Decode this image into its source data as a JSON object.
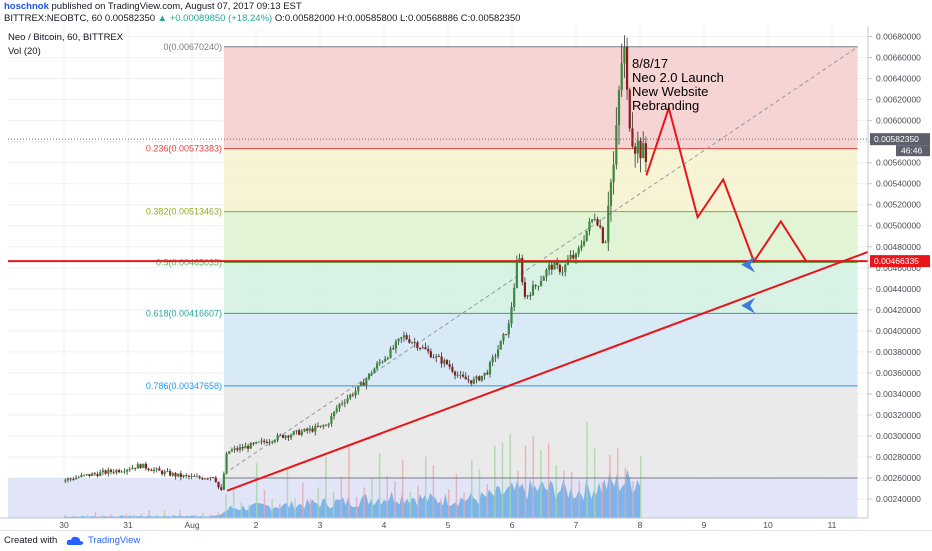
{
  "header": {
    "author": "hoschnok",
    "published": "published on TradingView.com, August 07, 2017 09:13 EST",
    "ticker_line": "BITTREX:NEOBTC, 60  0.00582350",
    "change": "▲ +0.00089850 (+18.24%)",
    "ohlc": "O:0.00582000 H:0.00585800 L:0.00568886 C:0.00582350"
  },
  "legend": {
    "symbol": "Neo / Bitcoin, 60, BITTREX",
    "volume": "Vol (20)"
  },
  "annotation": {
    "lines": [
      "8/8/17",
      "Neo 2.0 Launch",
      "New Website",
      "Rebranding"
    ]
  },
  "footer": {
    "created_with": "Created with",
    "brand": "TradingView"
  },
  "chart_data": {
    "type": "candlestick",
    "symbol": "NEOBTC",
    "timeframe": "60",
    "exchange": "BITTREX",
    "x_tick_labels": [
      "30",
      "31",
      "Aug",
      "2",
      "3",
      "4",
      "5",
      "6",
      "7",
      "8",
      "9",
      "10",
      "11"
    ],
    "x_tick_day_index": [
      0,
      1,
      2,
      3,
      4,
      5,
      6,
      7,
      8,
      9,
      10,
      11,
      12
    ],
    "ylim": [
      0.00222,
      0.0069
    ],
    "y_ticks": [
      "0.00240000",
      "0.00260000",
      "0.00280000",
      "0.00300000",
      "0.00320000",
      "0.00340000",
      "0.00360000",
      "0.00380000",
      "0.00400000",
      "0.00420000",
      "0.00440000",
      "0.00460000",
      "0.00480000",
      "0.00500000",
      "0.00520000",
      "0.00540000",
      "0.00560000",
      "0.00580000",
      "0.00600000",
      "0.00620000",
      "0.00640000",
      "0.00660000",
      "0.00680000"
    ],
    "last_price": {
      "value": 0.0058235,
      "label": "0.00582350",
      "countdown": "46:46"
    },
    "horizontal_level": {
      "value": 0.00466335,
      "label": "0.00466335",
      "color": "#e8151b"
    },
    "fibonacci": [
      {
        "level": "0",
        "value": 0.0067024,
        "label": "0(0.00670240)",
        "color": "#787b86"
      },
      {
        "level": "0.236",
        "value": 0.00573383,
        "label": "0.236(0.00573383)",
        "color": "#e4443f"
      },
      {
        "level": "0.382",
        "value": 0.00513463,
        "label": "0.382(0.00513463)",
        "color": "#8fae1b"
      },
      {
        "level": "0.5",
        "value": 0.00465035,
        "label": "0.5(0.00465035)",
        "color": "#4caf50"
      },
      {
        "level": "0.618",
        "value": 0.00416607,
        "label": "0.618(0.00416607)",
        "color": "#26a69a"
      },
      {
        "level": "0.786",
        "value": 0.00347658,
        "label": "0.786(0.00347658)",
        "color": "#2196f3"
      },
      {
        "level": "1",
        "value": 0.0026,
        "label": "",
        "color": "#787b86"
      }
    ],
    "fib_zone_colors": [
      "#f6cccc",
      "#f4f2cd",
      "#dcf3cf",
      "#d1f0e0",
      "#d2e6f6",
      "#e6e6e6"
    ],
    "fib_start_day": 2.5,
    "fib_end_day": 12.4,
    "price_path": [
      [
        0.0,
        0.00258
      ],
      [
        0.3,
        0.00262
      ],
      [
        0.6,
        0.00265
      ],
      [
        0.9,
        0.00268
      ],
      [
        1.2,
        0.00272
      ],
      [
        1.5,
        0.00266
      ],
      [
        1.8,
        0.00262
      ],
      [
        2.1,
        0.0026
      ],
      [
        2.35,
        0.00262
      ],
      [
        2.45,
        0.00245
      ],
      [
        2.55,
        0.00285
      ],
      [
        3.0,
        0.00292
      ],
      [
        3.4,
        0.003
      ],
      [
        3.8,
        0.00305
      ],
      [
        4.1,
        0.0031
      ],
      [
        4.3,
        0.0033
      ],
      [
        4.6,
        0.00345
      ],
      [
        4.9,
        0.00368
      ],
      [
        5.1,
        0.0038
      ],
      [
        5.3,
        0.00395
      ],
      [
        5.5,
        0.00388
      ],
      [
        5.8,
        0.00375
      ],
      [
        6.0,
        0.00368
      ],
      [
        6.2,
        0.00355
      ],
      [
        6.4,
        0.00352
      ],
      [
        6.6,
        0.0036
      ],
      [
        6.8,
        0.00385
      ],
      [
        6.95,
        0.00405
      ],
      [
        7.05,
        0.0045
      ],
      [
        7.1,
        0.00475
      ],
      [
        7.2,
        0.00432
      ],
      [
        7.4,
        0.00445
      ],
      [
        7.6,
        0.00462
      ],
      [
        7.8,
        0.00458
      ],
      [
        7.9,
        0.0047
      ],
      [
        8.0,
        0.0047
      ],
      [
        8.1,
        0.00485
      ],
      [
        8.2,
        0.005
      ],
      [
        8.3,
        0.0051
      ],
      [
        8.4,
        0.00495
      ],
      [
        8.45,
        0.00475
      ],
      [
        8.5,
        0.00525
      ],
      [
        8.6,
        0.0056
      ],
      [
        8.7,
        0.0065
      ],
      [
        8.75,
        0.0067
      ],
      [
        8.8,
        0.0062
      ],
      [
        8.9,
        0.0058
      ],
      [
        9.0,
        0.00575
      ],
      [
        9.1,
        0.0056
      ]
    ],
    "volume_path": [
      [
        0.0,
        0.1
      ],
      [
        2.4,
        0.15
      ],
      [
        2.6,
        0.7
      ],
      [
        3.5,
        0.9
      ],
      [
        4.5,
        1.2
      ],
      [
        5.2,
        1.6
      ],
      [
        5.8,
        1.3
      ],
      [
        6.5,
        1.4
      ],
      [
        7.0,
        1.9
      ],
      [
        7.5,
        2.1
      ],
      [
        8.0,
        1.9
      ],
      [
        8.5,
        2.4
      ],
      [
        9.0,
        2.8
      ]
    ],
    "forecast_path": [
      [
        9.1,
        0.00548
      ],
      [
        9.45,
        0.00612
      ],
      [
        9.9,
        0.00508
      ],
      [
        10.3,
        0.00544
      ],
      [
        10.78,
        0.00466
      ],
      [
        11.2,
        0.00504
      ],
      [
        11.6,
        0.00466
      ]
    ],
    "trendline": [
      [
        2.55,
        0.00248
      ],
      [
        13.0,
        0.00485
      ]
    ],
    "diagonal_dashed": [
      [
        2.6,
        0.00268
      ],
      [
        12.4,
        0.0067
      ]
    ],
    "arrows": [
      {
        "day": 10.8,
        "value": 0.00463,
        "color": "#3d7bd6"
      },
      {
        "day": 10.8,
        "value": 0.00424,
        "color": "#3d7bd6"
      }
    ]
  }
}
